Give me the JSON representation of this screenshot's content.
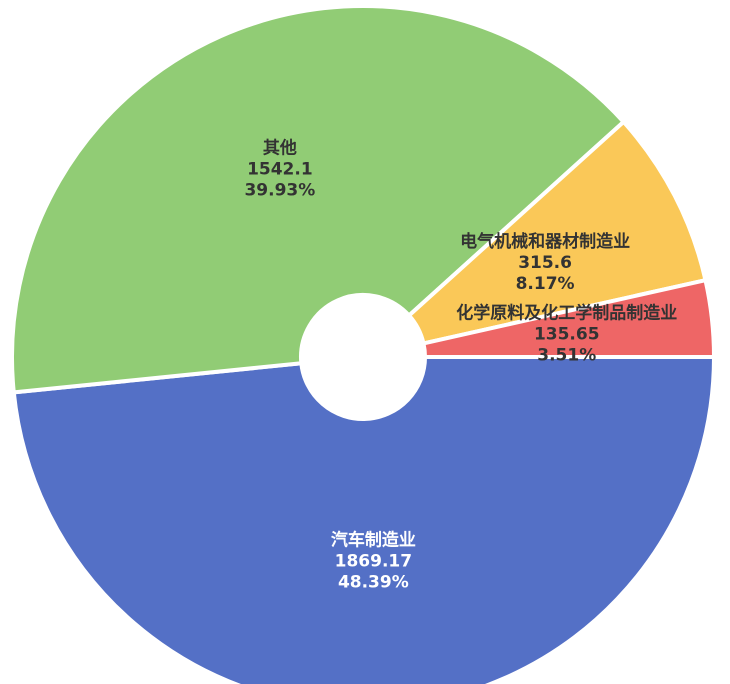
{
  "chart_data": {
    "type": "pie",
    "categories": [
      "汽车制造业",
      "其他",
      "电气机械和器材制造业",
      "化学原料及化工学制品制造业"
    ],
    "values": [
      1869.17,
      1542.1,
      315.6,
      135.65
    ],
    "percents": [
      48.39,
      39.93,
      8.17,
      3.51
    ],
    "percent_labels": [
      "48.39%",
      "39.93%",
      "8.17%",
      "3.51%"
    ],
    "colors": [
      "#5470c6",
      "#91cc75",
      "#fac858",
      "#ee6666"
    ],
    "label_colors": [
      "#ffffff",
      "#333333",
      "#333333",
      "#333333"
    ]
  }
}
